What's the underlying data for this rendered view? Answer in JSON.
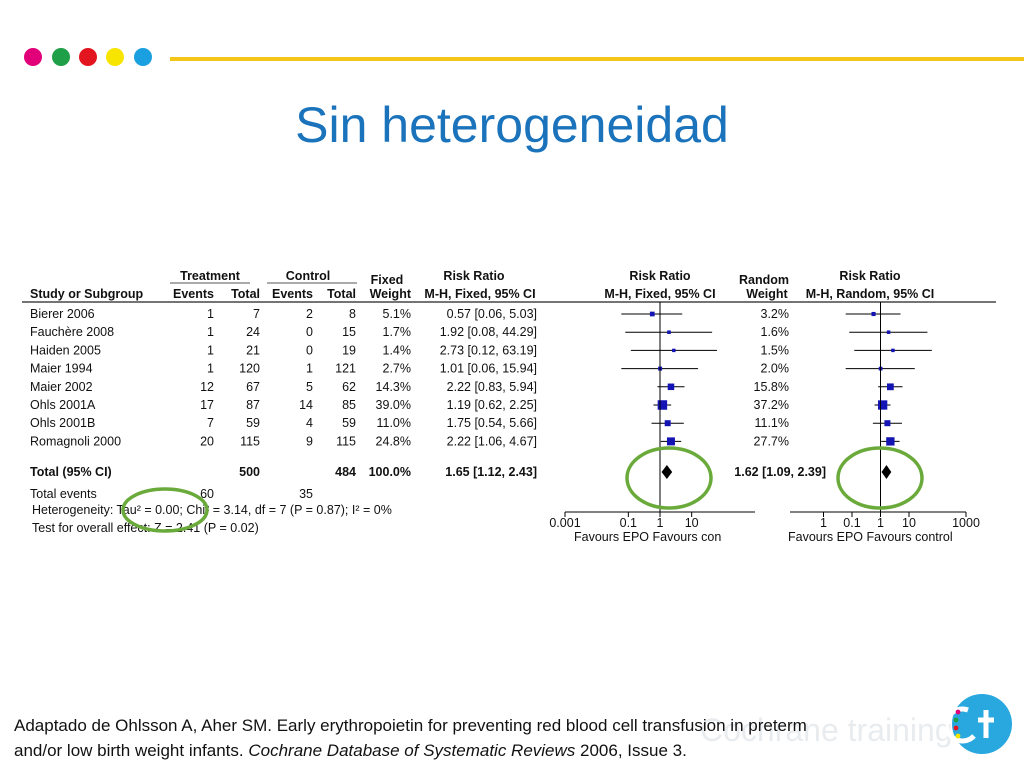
{
  "slide": {
    "title": "Sin heterogeneidad",
    "citation_main": "Adaptado de Ohlsson A, Aher SM. Early erythropoietin for preventing red blood cell transfusion in preterm and/or low birth weight infants. ",
    "citation_journal": "Cochrane Database of Systematic Reviews",
    "citation_tail": " 2006, Issue 3.",
    "watermark": "Cochrane training",
    "dot_colors": [
      "#e2007a",
      "#1f9f48",
      "#e3161f",
      "#f7e500",
      "#1aa0e0"
    ],
    "line_color": "#f5c518",
    "title_color": "#1a73bb"
  },
  "table": {
    "h_treatment": "Treatment",
    "h_control": "Control",
    "h_fixed": "Fixed",
    "h_rr": "Risk Ratio",
    "h_study": "Study or Subgroup",
    "h_events": "Events",
    "h_total": "Total",
    "h_weight": "Weight",
    "h_mh_fixed": "M-H, Fixed, 95% CI",
    "h_rr_plot": "Risk Ratio",
    "h_mh_fixed_plot": "M-H, Fixed, 95% CI",
    "h_random": "Random",
    "h_weight_r": "Weight",
    "h_rr_r": "Risk Ratio",
    "h_mh_random": "M-H, Random, 95% CI",
    "total_label": "Total (95% CI)",
    "total_t_total": "500",
    "total_c_total": "484",
    "total_weight": "100.0%",
    "total_rr_fixed": "1.65 [1.12, 2.43]",
    "total_rr_random": "1.62 [1.09, 2.39]",
    "total_events_label": "Total events",
    "total_events_t": "60",
    "total_events_c": "35",
    "heterogeneity": "Heterogeneity: Tau² = 0.00; Chi² = 3.14, df = 7 (P = 0.87); I² = 0%",
    "overall_effect": "Test for overall effect: Z = 2.41 (P = 0.02)",
    "ticks_fixed": [
      "0.001",
      "0.1",
      "1",
      "10"
    ],
    "ticks_random": [
      "1",
      "0.1",
      "1",
      "10",
      "1000"
    ],
    "fav_fixed": "Favours EPO   Favours con",
    "fav_random": "Favours EPO   Favours control",
    "highlight_color": "#6aaa3a",
    "square_color": "#1414b4"
  },
  "chart_data": {
    "type": "forest",
    "scale": "log",
    "studies": [
      {
        "study": "Bierer 2006",
        "t_events": 1,
        "t_total": 7,
        "c_events": 2,
        "c_total": 8,
        "weight_fixed": "5.1%",
        "rr_fixed": "0.57 [0.06, 5.03]",
        "weight_random": "3.2%",
        "rr": 0.57,
        "lo": 0.06,
        "hi": 5.03
      },
      {
        "study": "Fauchère 2008",
        "t_events": 1,
        "t_total": 24,
        "c_events": 0,
        "c_total": 15,
        "weight_fixed": "1.7%",
        "rr_fixed": "1.92 [0.08, 44.29]",
        "weight_random": "1.6%",
        "rr": 1.92,
        "lo": 0.08,
        "hi": 44.29
      },
      {
        "study": "Haiden 2005",
        "t_events": 1,
        "t_total": 21,
        "c_events": 0,
        "c_total": 19,
        "weight_fixed": "1.4%",
        "rr_fixed": "2.73 [0.12, 63.19]",
        "weight_random": "1.5%",
        "rr": 2.73,
        "lo": 0.12,
        "hi": 63.19
      },
      {
        "study": "Maier 1994",
        "t_events": 1,
        "t_total": 120,
        "c_events": 1,
        "c_total": 121,
        "weight_fixed": "2.7%",
        "rr_fixed": "1.01 [0.06, 15.94]",
        "weight_random": "2.0%",
        "rr": 1.01,
        "lo": 0.06,
        "hi": 15.94
      },
      {
        "study": "Maier 2002",
        "t_events": 12,
        "t_total": 67,
        "c_events": 5,
        "c_total": 62,
        "weight_fixed": "14.3%",
        "rr_fixed": "2.22 [0.83, 5.94]",
        "weight_random": "15.8%",
        "rr": 2.22,
        "lo": 0.83,
        "hi": 5.94
      },
      {
        "study": "Ohls 2001A",
        "t_events": 17,
        "t_total": 87,
        "c_events": 14,
        "c_total": 85,
        "weight_fixed": "39.0%",
        "rr_fixed": "1.19 [0.62, 2.25]",
        "weight_random": "37.2%",
        "rr": 1.19,
        "lo": 0.62,
        "hi": 2.25
      },
      {
        "study": "Ohls 2001B",
        "t_events": 7,
        "t_total": 59,
        "c_events": 4,
        "c_total": 59,
        "weight_fixed": "11.0%",
        "rr_fixed": "1.75 [0.54, 5.66]",
        "weight_random": "11.1%",
        "rr": 1.75,
        "lo": 0.54,
        "hi": 5.66
      },
      {
        "study": "Romagnoli 2000",
        "t_events": 20,
        "t_total": 115,
        "c_events": 9,
        "c_total": 115,
        "weight_fixed": "24.8%",
        "rr_fixed": "2.22 [1.06, 4.67]",
        "weight_random": "27.7%",
        "rr": 2.22,
        "lo": 1.06,
        "hi": 4.67
      }
    ],
    "pooled_fixed": {
      "rr": 1.65,
      "lo": 1.12,
      "hi": 2.43
    },
    "pooled_random": {
      "rr": 1.62,
      "lo": 1.09,
      "hi": 2.39
    },
    "x_range": [
      0.001,
      1000
    ]
  }
}
